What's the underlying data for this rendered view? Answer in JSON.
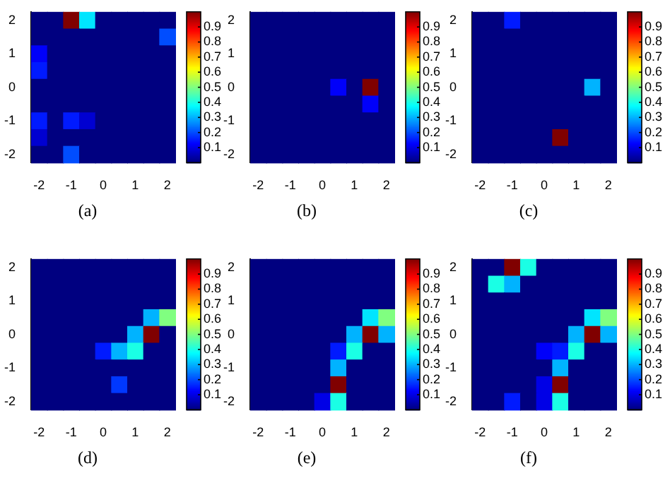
{
  "chart_data": [
    {
      "type": "heatmap",
      "annotations": [
        "(a)"
      ],
      "categories": [
        "-2",
        null,
        "-1",
        null,
        "0",
        null,
        "1",
        null,
        "2"
      ],
      "y_categories": [
        "2",
        null,
        "1",
        null,
        "0",
        null,
        "-1",
        null,
        "-2"
      ],
      "clim": [
        0,
        1
      ],
      "cticks": [
        0.1,
        0.2,
        0.3,
        0.4,
        0.5,
        0.6,
        0.7,
        0.8,
        0.9
      ],
      "cells": [
        [
          0,
          0,
          1,
          0.35,
          0,
          0,
          0,
          0,
          0
        ],
        [
          0,
          0,
          0,
          0,
          0,
          0,
          0,
          0,
          0.2
        ],
        [
          0.12,
          0,
          0,
          0,
          0,
          0,
          0,
          0,
          0
        ],
        [
          0.15,
          0,
          0,
          0,
          0,
          0,
          0,
          0,
          0
        ],
        [
          0,
          0,
          0,
          0,
          0,
          0,
          0,
          0,
          0
        ],
        [
          0,
          0,
          0,
          0,
          0,
          0,
          0,
          0,
          0
        ],
        [
          0.15,
          0,
          0.15,
          0.08,
          0,
          0,
          0,
          0,
          0
        ],
        [
          0.08,
          0,
          0,
          0,
          0,
          0,
          0,
          0,
          0
        ],
        [
          0,
          0,
          0.2,
          0,
          0,
          0,
          0,
          0,
          0
        ]
      ]
    },
    {
      "type": "heatmap",
      "annotations": [
        "(b)"
      ],
      "categories": [
        "-2",
        null,
        "-1",
        null,
        "0",
        null,
        "1",
        null,
        "2"
      ],
      "y_categories": [
        "2",
        null,
        "1",
        null,
        "0",
        null,
        "-1",
        null,
        "-2"
      ],
      "clim": [
        0,
        1
      ],
      "cticks": [
        0.1,
        0.2,
        0.3,
        0.4,
        0.5,
        0.6,
        0.7,
        0.8,
        0.9
      ],
      "cells": [
        [
          0,
          0,
          0,
          0,
          0,
          0,
          0,
          0,
          0
        ],
        [
          0,
          0,
          0,
          0,
          0,
          0,
          0,
          0,
          0
        ],
        [
          0,
          0,
          0,
          0,
          0,
          0,
          0,
          0,
          0
        ],
        [
          0,
          0,
          0,
          0,
          0,
          0,
          0,
          0,
          0
        ],
        [
          0,
          0,
          0,
          0,
          0,
          0.12,
          0,
          1,
          0
        ],
        [
          0,
          0,
          0,
          0,
          0,
          0,
          0,
          0.12,
          0
        ],
        [
          0,
          0,
          0,
          0,
          0,
          0,
          0,
          0,
          0
        ],
        [
          0,
          0,
          0,
          0,
          0,
          0,
          0,
          0,
          0
        ],
        [
          0,
          0,
          0,
          0,
          0,
          0,
          0,
          0,
          0
        ]
      ]
    },
    {
      "type": "heatmap",
      "annotations": [
        "(c)"
      ],
      "categories": [
        "-2",
        null,
        "-1",
        null,
        "0",
        null,
        "1",
        null,
        "2"
      ],
      "y_categories": [
        "2",
        null,
        "1",
        null,
        "0",
        null,
        "-1",
        null,
        "-2"
      ],
      "clim": [
        0,
        1
      ],
      "cticks": [
        0.1,
        0.2,
        0.3,
        0.4,
        0.5,
        0.6,
        0.7,
        0.8,
        0.9
      ],
      "cells": [
        [
          0,
          0,
          0.15,
          0,
          0,
          0,
          0,
          0,
          0
        ],
        [
          0,
          0,
          0,
          0,
          0,
          0,
          0,
          0,
          0
        ],
        [
          0,
          0,
          0,
          0,
          0,
          0,
          0,
          0,
          0
        ],
        [
          0,
          0,
          0,
          0,
          0,
          0,
          0,
          0,
          0
        ],
        [
          0,
          0,
          0,
          0,
          0,
          0,
          0,
          0.3,
          0
        ],
        [
          0,
          0,
          0,
          0,
          0,
          0,
          0,
          0,
          0
        ],
        [
          0,
          0,
          0,
          0,
          0,
          0,
          0,
          0,
          0
        ],
        [
          0,
          0,
          0,
          0,
          0,
          1,
          0,
          0,
          0
        ],
        [
          0,
          0,
          0,
          0,
          0,
          0,
          0,
          0,
          0
        ]
      ]
    },
    {
      "type": "heatmap",
      "annotations": [
        "(d)"
      ],
      "categories": [
        "-2",
        null,
        "-1",
        null,
        "0",
        null,
        "1",
        null,
        "2"
      ],
      "y_categories": [
        "2",
        null,
        "1",
        null,
        "0",
        null,
        "-1",
        null,
        "-2"
      ],
      "clim": [
        0,
        1
      ],
      "cticks": [
        0.1,
        0.2,
        0.3,
        0.4,
        0.5,
        0.6,
        0.7,
        0.8,
        0.9
      ],
      "cells": [
        [
          0,
          0,
          0,
          0,
          0,
          0,
          0,
          0,
          0
        ],
        [
          0,
          0,
          0,
          0,
          0,
          0,
          0,
          0,
          0
        ],
        [
          0,
          0,
          0,
          0,
          0,
          0,
          0,
          0,
          0
        ],
        [
          0,
          0,
          0,
          0,
          0,
          0,
          0,
          0.3,
          0.5
        ],
        [
          0,
          0,
          0,
          0,
          0,
          0,
          0.3,
          1,
          0
        ],
        [
          0,
          0,
          0,
          0,
          0.15,
          0.3,
          0.4,
          0,
          0
        ],
        [
          0,
          0,
          0,
          0,
          0,
          0,
          0,
          0,
          0
        ],
        [
          0,
          0,
          0,
          0,
          0,
          0.18,
          0,
          0,
          0
        ],
        [
          0,
          0,
          0,
          0,
          0,
          0,
          0,
          0,
          0
        ]
      ]
    },
    {
      "type": "heatmap",
      "annotations": [
        "(e)"
      ],
      "categories": [
        "-2",
        null,
        "-1",
        null,
        "0",
        null,
        "1",
        null,
        "2"
      ],
      "y_categories": [
        "2",
        null,
        "1",
        null,
        "0",
        null,
        "-1",
        null,
        "-2"
      ],
      "clim": [
        0,
        1
      ],
      "cticks": [
        0.1,
        0.2,
        0.3,
        0.4,
        0.5,
        0.6,
        0.7,
        0.8,
        0.9
      ],
      "cells": [
        [
          0,
          0,
          0,
          0,
          0,
          0,
          0,
          0,
          0
        ],
        [
          0,
          0,
          0,
          0,
          0,
          0,
          0,
          0,
          0
        ],
        [
          0,
          0,
          0,
          0,
          0,
          0,
          0,
          0,
          0
        ],
        [
          0,
          0,
          0,
          0,
          0,
          0,
          0,
          0.35,
          0.5
        ],
        [
          0,
          0,
          0,
          0,
          0,
          0,
          0.3,
          1,
          0.3
        ],
        [
          0,
          0,
          0,
          0,
          0,
          0.15,
          0.4,
          0,
          0
        ],
        [
          0,
          0,
          0,
          0,
          0,
          0.3,
          0,
          0,
          0
        ],
        [
          0,
          0,
          0,
          0,
          0,
          1,
          0,
          0,
          0
        ],
        [
          0,
          0,
          0,
          0,
          0.1,
          0.4,
          0,
          0,
          0
        ]
      ]
    },
    {
      "type": "heatmap",
      "annotations": [
        "(f)"
      ],
      "categories": [
        "-2",
        null,
        "-1",
        null,
        "0",
        null,
        "1",
        null,
        "2"
      ],
      "y_categories": [
        "2",
        null,
        "1",
        null,
        "0",
        null,
        "-1",
        null,
        "-2"
      ],
      "clim": [
        0,
        1
      ],
      "cticks": [
        0.1,
        0.2,
        0.3,
        0.4,
        0.5,
        0.6,
        0.7,
        0.8,
        0.9
      ],
      "cells": [
        [
          0,
          0,
          1,
          0.4,
          0,
          0,
          0,
          0,
          0
        ],
        [
          0,
          0.4,
          0.3,
          0,
          0,
          0,
          0,
          0,
          0
        ],
        [
          0,
          0,
          0,
          0,
          0,
          0,
          0,
          0,
          0
        ],
        [
          0,
          0,
          0,
          0,
          0,
          0,
          0,
          0.35,
          0.5
        ],
        [
          0,
          0,
          0,
          0,
          0,
          0,
          0.3,
          1,
          0.3
        ],
        [
          0,
          0,
          0,
          0,
          0.12,
          0.15,
          0.4,
          0,
          0
        ],
        [
          0,
          0,
          0,
          0,
          0,
          0.3,
          0,
          0,
          0
        ],
        [
          0,
          0,
          0,
          0,
          0.1,
          1,
          0,
          0,
          0
        ],
        [
          0,
          0,
          0.15,
          0,
          0.1,
          0.4,
          0,
          0,
          0
        ]
      ]
    }
  ]
}
